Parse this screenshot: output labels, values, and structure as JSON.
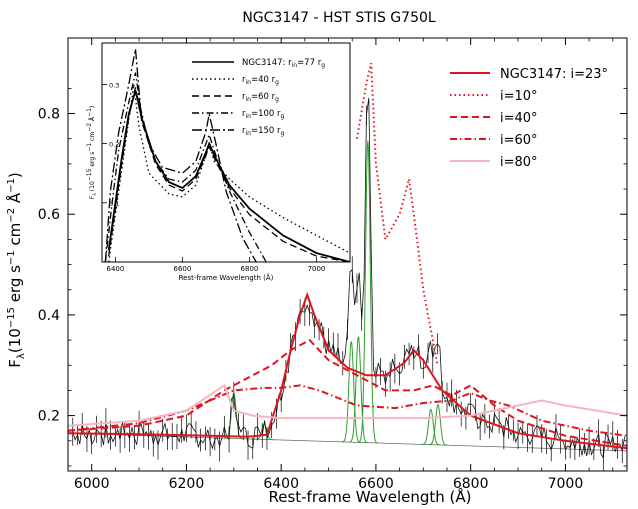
{
  "chart_data": [
    {
      "type": "line",
      "title": "NGC3147 - HST STIS G750L",
      "xlabel": "Rest-frame Wavelength (Å)",
      "ylabel": "F",
      "ylabel_sub": "λ",
      "ylabel_units": "(10",
      "ylabel_exp1": "−15",
      "ylabel_mid": " erg s",
      "ylabel_exp2": "−1",
      "ylabel_mid2": " cm",
      "ylabel_exp3": "−2",
      "ylabel_mid3": " Å",
      "ylabel_exp4": "−1",
      "ylabel_end": ")",
      "xlim": [
        5950,
        7130
      ],
      "ylim": [
        0.09,
        0.95
      ],
      "xticks": [
        "6000",
        "6200",
        "6400",
        "6600",
        "6800",
        "7000"
      ],
      "yticks": [
        "0.2",
        "0.4",
        "0.6",
        "0.8"
      ],
      "xtick_values": [
        6000,
        6200,
        6400,
        6600,
        6800,
        7000
      ],
      "ytick_values": [
        0.2,
        0.4,
        0.6,
        0.8
      ],
      "legend_position": "top-right",
      "legend": [
        {
          "label": "NGC3147: i=23°",
          "color": "#e0141e",
          "dash": "solid"
        },
        {
          "label": "i=10°",
          "color": "#e0141e",
          "dash": "dotted"
        },
        {
          "label": "i=40°",
          "color": "#e0141e",
          "dash": "dashed"
        },
        {
          "label": "i=60°",
          "color": "#e0141e",
          "dash": "dashdot"
        },
        {
          "label": "i=80°",
          "color": "#f4b6c2",
          "dash": "solid"
        }
      ],
      "series": [
        {
          "name": "NGC3147: i=23°",
          "color": "#e0141e",
          "x": [
            5950,
            6100,
            6250,
            6330,
            6370,
            6400,
            6420,
            6440,
            6455,
            6470,
            6500,
            6540,
            6580,
            6620,
            6660,
            6680,
            6700,
            6740,
            6800,
            6900,
            7000,
            7130
          ],
          "y": [
            0.165,
            0.163,
            0.16,
            0.158,
            0.162,
            0.25,
            0.33,
            0.4,
            0.44,
            0.4,
            0.33,
            0.295,
            0.28,
            0.28,
            0.305,
            0.33,
            0.31,
            0.25,
            0.2,
            0.165,
            0.15,
            0.135
          ]
        },
        {
          "name": "i=10°",
          "color": "#e0141e",
          "x": [
            6560,
            6580,
            6590,
            6600,
            6620,
            6650,
            6670,
            6680,
            6700,
            6730
          ],
          "y": [
            0.75,
            0.86,
            0.9,
            0.7,
            0.55,
            0.6,
            0.67,
            0.6,
            0.45,
            0.3
          ]
        },
        {
          "name": "i=40°",
          "color": "#e0141e",
          "x": [
            5950,
            6100,
            6200,
            6280,
            6340,
            6380,
            6420,
            6460,
            6500,
            6560,
            6620,
            6680,
            6720,
            6760,
            6800,
            6850,
            6900,
            7000,
            7130
          ],
          "y": [
            0.17,
            0.18,
            0.2,
            0.25,
            0.28,
            0.3,
            0.33,
            0.35,
            0.31,
            0.28,
            0.25,
            0.25,
            0.26,
            0.24,
            0.26,
            0.22,
            0.19,
            0.16,
            0.14
          ]
        },
        {
          "name": "i=60°",
          "color": "#e0141e",
          "x": [
            5950,
            6100,
            6200,
            6300,
            6360,
            6400,
            6440,
            6480,
            6560,
            6640,
            6700,
            6760,
            6800,
            6840,
            6880,
            6950,
            7050,
            7130
          ],
          "y": [
            0.17,
            0.185,
            0.21,
            0.25,
            0.255,
            0.255,
            0.26,
            0.25,
            0.22,
            0.215,
            0.225,
            0.23,
            0.245,
            0.23,
            0.22,
            0.19,
            0.17,
            0.16
          ]
        },
        {
          "name": "i=80°",
          "color": "#f4b6c2",
          "x": [
            5950,
            6100,
            6200,
            6280,
            6300,
            6340,
            6400,
            6500,
            6600,
            6700,
            6800,
            6900,
            6950,
            7000,
            7130
          ],
          "y": [
            0.18,
            0.19,
            0.21,
            0.26,
            0.21,
            0.2,
            0.195,
            0.195,
            0.195,
            0.195,
            0.2,
            0.22,
            0.23,
            0.22,
            0.2
          ]
        },
        {
          "name": "continuum",
          "color": "#666666",
          "x": [
            5950,
            7130
          ],
          "y": [
            0.165,
            0.13
          ]
        },
        {
          "name": "narrow lines",
          "color": "#2ca02c",
          "centers": [
            6300,
            6364,
            6548,
            6563,
            6583,
            6716,
            6731
          ],
          "amps": [
            0.09,
            0.03,
            0.2,
            0.21,
            0.6,
            0.07,
            0.08
          ],
          "sigma": 5
        }
      ]
    },
    {
      "type": "line",
      "xlabel": "Rest-frame Wavelength (Å)",
      "ylabel_prefix": "F",
      "ylabel_sub": "λ",
      "ylabel_units": " (10",
      "ylabel_exp1": "−15",
      "ylabel_mid": " erg s",
      "ylabel_exp2": "−1",
      "ylabel_mid2": " cm",
      "ylabel_exp3": "−2",
      "ylabel_mid3": " Å",
      "ylabel_exp4": "−1",
      "ylabel_end": ")",
      "xlim": [
        6360,
        7100
      ],
      "ylim": [
        0.0,
        0.37
      ],
      "xticks": [
        "6400",
        "6600",
        "6800",
        "7000"
      ],
      "xtick_values": [
        6400,
        6600,
        6800,
        7000
      ],
      "yticks": [
        "0.1",
        "0.2",
        "0.3"
      ],
      "ytick_values": [
        0.1,
        0.2,
        0.3
      ],
      "legend_position": "top-right",
      "legend": [
        {
          "label": "NGC3147: r",
          "sub": "in",
          "suffix": "=77 r",
          "sub2": "g",
          "dash": "solid"
        },
        {
          "label": "r",
          "sub": "in",
          "suffix": "=40 r",
          "sub2": "g",
          "dash": "dotted"
        },
        {
          "label": "r",
          "sub": "in",
          "suffix": "=60 r",
          "sub2": "g",
          "dash": "dashed"
        },
        {
          "label": "r",
          "sub": "in",
          "suffix": "=100 r",
          "sub2": "g",
          "dash": "dashdot"
        },
        {
          "label": "r",
          "sub": "in",
          "suffix": "=150 r",
          "sub2": "g",
          "dash": "longdashdot"
        }
      ],
      "series": [
        {
          "name": "NGC3147: rin=77 rg",
          "dash": "solid",
          "x": [
            6380,
            6400,
            6420,
            6440,
            6460,
            6480,
            6520,
            6560,
            6600,
            6640,
            6670,
            6680,
            6700,
            6740,
            6800,
            6900,
            7000,
            7100
          ],
          "y": [
            0.02,
            0.1,
            0.18,
            0.25,
            0.29,
            0.24,
            0.17,
            0.135,
            0.125,
            0.145,
            0.185,
            0.2,
            0.175,
            0.13,
            0.09,
            0.045,
            0.015,
            0.0
          ]
        },
        {
          "name": "rin=40 rg",
          "dash": "dotted",
          "x": [
            6380,
            6400,
            6420,
            6440,
            6455,
            6470,
            6500,
            6560,
            6600,
            6640,
            6670,
            6680,
            6695,
            6740,
            6800,
            6900,
            7000,
            7100
          ],
          "y": [
            0.0,
            0.08,
            0.16,
            0.24,
            0.3,
            0.23,
            0.15,
            0.115,
            0.11,
            0.13,
            0.18,
            0.2,
            0.17,
            0.14,
            0.11,
            0.075,
            0.045,
            0.015
          ]
        },
        {
          "name": "rin=60 rg",
          "dash": "dashed",
          "x": [
            6380,
            6400,
            6420,
            6440,
            6460,
            6480,
            6520,
            6560,
            6600,
            6640,
            6670,
            6680,
            6700,
            6740,
            6800,
            6900,
            7000,
            7100
          ],
          "y": [
            0.01,
            0.09,
            0.17,
            0.245,
            0.295,
            0.235,
            0.165,
            0.13,
            0.12,
            0.14,
            0.18,
            0.195,
            0.17,
            0.125,
            0.08,
            0.035,
            0.01,
            0.0
          ]
        },
        {
          "name": "rin=100 rg",
          "dash": "dashdot",
          "x": [
            6370,
            6390,
            6410,
            6440,
            6460,
            6480,
            6520,
            6560,
            6600,
            6640,
            6670,
            6680,
            6700,
            6740,
            6800,
            6850
          ],
          "y": [
            0.0,
            0.1,
            0.19,
            0.27,
            0.32,
            0.24,
            0.17,
            0.14,
            0.135,
            0.155,
            0.2,
            0.215,
            0.18,
            0.12,
            0.05,
            0.0
          ]
        },
        {
          "name": "rin=150 rg",
          "dash": "longdashdot",
          "x": [
            6370,
            6385,
            6410,
            6440,
            6460,
            6475,
            6500,
            6540,
            6600,
            6640,
            6670,
            6680,
            6700,
            6730,
            6780,
            6820
          ],
          "y": [
            0.0,
            0.12,
            0.22,
            0.3,
            0.36,
            0.26,
            0.2,
            0.16,
            0.15,
            0.17,
            0.22,
            0.25,
            0.2,
            0.12,
            0.04,
            0.0
          ]
        }
      ]
    }
  ]
}
